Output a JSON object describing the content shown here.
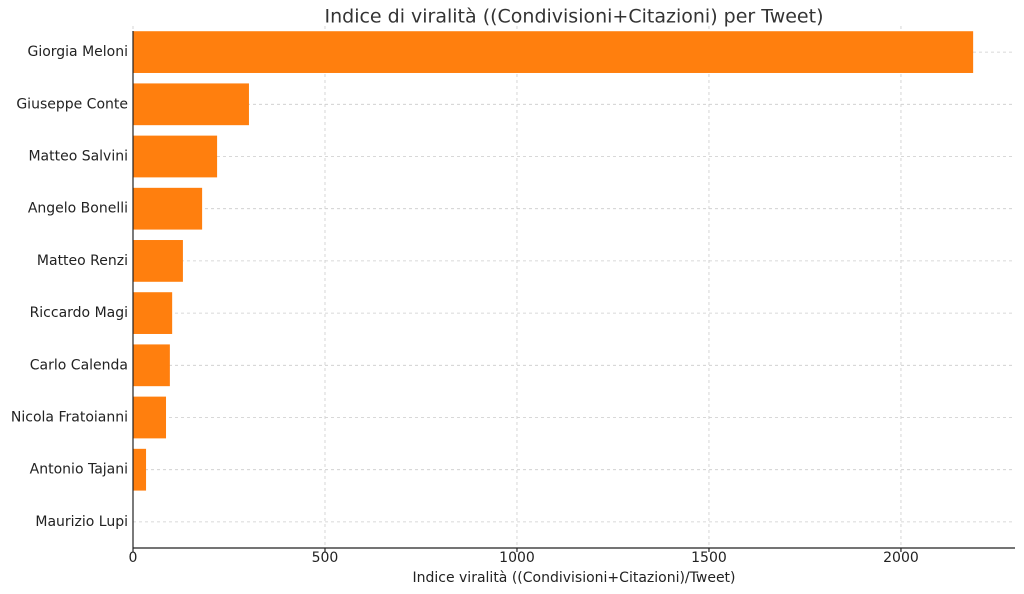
{
  "chart_data": {
    "type": "barh",
    "title": "Indice di viralità ((Condivisioni+Citazioni) per Tweet)",
    "x_label": "Indice viralità ((Condivisioni+Citazioni)/Tweet)",
    "categories": [
      "Giorgia Meloni",
      "Giuseppe Conte",
      "Matteo Salvini",
      "Angelo Bonelli",
      "Matteo Renzi",
      "Riccardo Magi",
      "Carlo Calenda",
      "Nicola Fratoianni",
      "Antonio Tajani",
      "Maurizio Lupi"
    ],
    "values": [
      2188,
      302,
      219,
      180,
      130,
      102,
      96,
      86,
      34,
      0
    ],
    "color": "#ff7f0e",
    "xlim": [
      0,
      2297
    ],
    "xticks": [
      0,
      500,
      1000,
      1500,
      2000
    ],
    "grid": true
  }
}
